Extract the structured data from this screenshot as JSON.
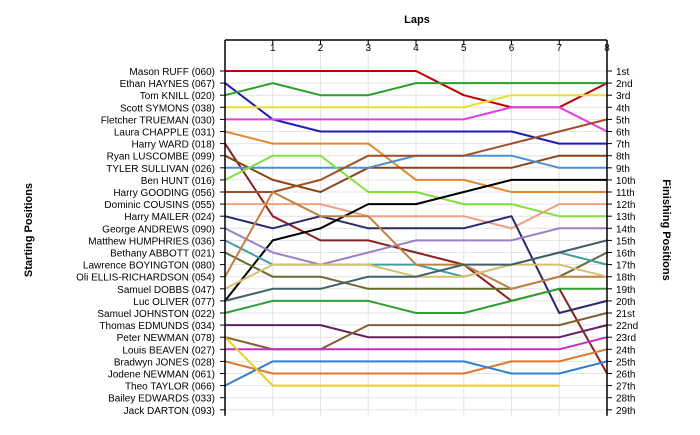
{
  "chart_data": {
    "type": "line",
    "title": "",
    "top_axis_label": "Laps",
    "left_axis_label": "Starting Positions",
    "right_axis_label": "Finishing Positions",
    "laps": [
      1,
      2,
      3,
      4,
      5,
      6,
      7,
      8
    ],
    "lap_tick_labels": [
      "1",
      "2",
      "3",
      "4",
      "5",
      "6",
      "7",
      "8"
    ],
    "finishing_position_labels": [
      "1st",
      "2nd",
      "3rd",
      "4th",
      "5th",
      "6th",
      "7th",
      "8th",
      "9th",
      "10th",
      "11th",
      "12th",
      "13th",
      "14th",
      "15th",
      "16th",
      "17th",
      "18th",
      "19th",
      "20th",
      "21st",
      "22nd",
      "23rd",
      "24th",
      "25th",
      "26th",
      "27th",
      "28th",
      "29th"
    ],
    "riders": [
      {
        "name": "Mason RUFF (060)",
        "color": "#c00000",
        "positions": [
          1,
          1,
          1,
          1,
          1,
          3,
          4,
          4,
          2
        ]
      },
      {
        "name": "Ethan HAYNES (067)",
        "color": "#1c1cb5",
        "positions": [
          2,
          5,
          6,
          6,
          6,
          6,
          6,
          7,
          7
        ]
      },
      {
        "name": "Tom KNILL (020)",
        "color": "#2aa02a",
        "positions": [
          3,
          2,
          3,
          3,
          2,
          2,
          2,
          2,
          2
        ]
      },
      {
        "name": "Scott SYMONS (038)",
        "color": "#e8e030",
        "positions": [
          4,
          4,
          4,
          4,
          4,
          4,
          3,
          3,
          3
        ]
      },
      {
        "name": "Fletcher TRUEMAN (030)",
        "color": "#e040e0",
        "positions": [
          5,
          5,
          5,
          5,
          5,
          5,
          4,
          4,
          6
        ]
      },
      {
        "name": "Laura CHAPPLE (031)",
        "color": "#e08a30",
        "positions": [
          6,
          7,
          7,
          7,
          10,
          10,
          11,
          11,
          11
        ]
      },
      {
        "name": "Harry WARD (018)",
        "color": "#8b2020",
        "positions": [
          7,
          13,
          15,
          15,
          16,
          17,
          20,
          19,
          26
        ]
      },
      {
        "name": "Ryan LUSCOMBE (099)",
        "color": "#8b4513",
        "positions": [
          8,
          10,
          11,
          9,
          9,
          9,
          9,
          8,
          8
        ]
      },
      {
        "name": "TYLER SULLIVAN (026)",
        "color": "#4a90d0",
        "positions": [
          9,
          9,
          9,
          9,
          8,
          8,
          8,
          9,
          9
        ]
      },
      {
        "name": "Ben HUNT (016)",
        "color": "#80e040",
        "positions": [
          10,
          8,
          8,
          11,
          11,
          12,
          12,
          13,
          13
        ]
      },
      {
        "name": "Harry GOODING (056)",
        "color": "#a05028",
        "positions": [
          11,
          11,
          10,
          8,
          8,
          8,
          7,
          6,
          5
        ]
      },
      {
        "name": "Dominic COUSINS (055)",
        "color": "#f0a080",
        "positions": [
          12,
          12,
          12,
          13,
          13,
          13,
          14,
          12,
          12
        ]
      },
      {
        "name": "Harry MAILER (024)",
        "color": "#2a2a6a",
        "positions": [
          13,
          14,
          13,
          14,
          14,
          14,
          13,
          21,
          20
        ]
      },
      {
        "name": "George ANDREWS (090)",
        "color": "#000000",
        "positions": [
          20,
          15,
          14,
          12,
          12,
          11,
          10,
          10,
          10
        ]
      },
      {
        "name": "Matthew HUMPHRIES (036)",
        "color": "#9a80c8",
        "positions": [
          14,
          16,
          17,
          16,
          15,
          15,
          15,
          14,
          14
        ]
      },
      {
        "name": "Bethany ABBOTT (021)",
        "color": "#6a6a30",
        "positions": [
          16,
          18,
          18,
          19,
          19,
          19,
          19,
          18,
          16
        ]
      },
      {
        "name": "Lawrence BOYINGTON (080)",
        "color": "#40a0a0",
        "positions": [
          15,
          17,
          17,
          17,
          17,
          18,
          17,
          16,
          17
        ]
      },
      {
        "name": "Oli ELLIS-RICHARDSON (054)",
        "color": "#c08040",
        "positions": [
          18,
          11,
          13,
          13,
          17,
          17,
          19,
          18,
          18
        ]
      },
      {
        "name": "Samuel DOBBS (047)",
        "color": "#d8c070",
        "positions": [
          19,
          17,
          17,
          17,
          18,
          18,
          17,
          17,
          18
        ]
      },
      {
        "name": "Luc OLIVER (077)",
        "color": "#40606a",
        "positions": [
          20,
          19,
          19,
          18,
          18,
          17,
          17,
          16,
          15
        ]
      },
      {
        "name": "Samuel JOHNSTON (022)",
        "color": "#30a030",
        "positions": [
          21,
          20,
          20,
          20,
          21,
          21,
          20,
          19,
          19
        ]
      },
      {
        "name": "Thomas EDMUNDS (034)",
        "color": "#602060",
        "positions": [
          22,
          22,
          22,
          23,
          23,
          23,
          23,
          23,
          22
        ]
      },
      {
        "name": "Peter NEWMAN (078)",
        "color": "#806030",
        "positions": [
          23,
          24,
          24,
          22,
          22,
          22,
          22,
          22,
          21
        ]
      },
      {
        "name": "Louis BEAVEN (027)",
        "color": "#c030c0",
        "positions": [
          24,
          24,
          24,
          24,
          24,
          24,
          24,
          24,
          23
        ]
      },
      {
        "name": "Bradwyn JONES (028)",
        "color": "#e07830",
        "positions": [
          25,
          26,
          26,
          26,
          26,
          26,
          25,
          25,
          24
        ]
      },
      {
        "name": "Jodene NEWMAN (061)",
        "color": "#3080d0",
        "positions": [
          27,
          25,
          25,
          25,
          25,
          25,
          26,
          26,
          25
        ]
      },
      {
        "name": "Theo TAYLOR (066)",
        "color": "#e8d020",
        "positions": [
          23,
          27,
          27,
          27,
          27,
          27,
          27,
          27
        ]
      },
      {
        "name": "Bailey EDWARDS (033)",
        "color": "#888888",
        "positions": []
      },
      {
        "name": "Jack DARTON (093)",
        "color": "#888888",
        "positions": []
      }
    ]
  }
}
